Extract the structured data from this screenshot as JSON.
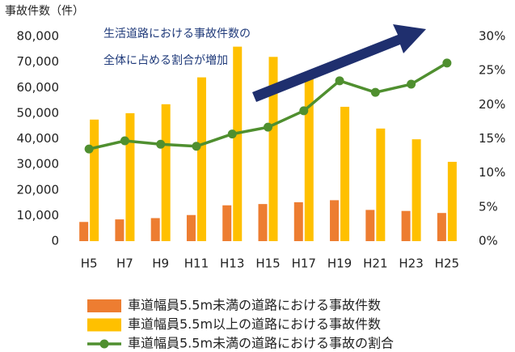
{
  "chart_data": {
    "type": "bar",
    "y_axis_label": "事故件数（件）",
    "annotation": [
      "生活道路における事故件数の",
      "全体に占める割合が増加"
    ],
    "categories": [
      "H5",
      "H7",
      "H9",
      "H11",
      "H13",
      "H15",
      "H17",
      "H19",
      "H21",
      "H23",
      "H25"
    ],
    "series": [
      {
        "name": "車道幅員5.5m未満の道路における事故件数",
        "type": "bar",
        "color": "#ed7d31",
        "values": [
          7500,
          8500,
          9000,
          10200,
          14000,
          14500,
          15200,
          16000,
          12200,
          11800,
          11000
        ]
      },
      {
        "name": "車道幅員5.5m以上の道路における事故件数",
        "type": "bar",
        "color": "#ffc000",
        "values": [
          47500,
          50000,
          53500,
          64000,
          76000,
          72000,
          65000,
          52500,
          44000,
          39800,
          31000
        ]
      },
      {
        "name": "車道幅員5.5m未満の道路における事故の割合",
        "type": "line",
        "axis": "y2",
        "color": "#4f8f2f",
        "values": [
          13.5,
          14.7,
          14.2,
          13.9,
          15.7,
          16.7,
          19.1,
          23.5,
          21.8,
          23.0,
          26.1
        ]
      }
    ],
    "ylim": [
      0,
      80000
    ],
    "yticks": [
      0,
      {
        "value": 10000,
        "label": "10,000"
      },
      {
        "value": 20000,
        "label": "20,000"
      },
      {
        "value": 30000,
        "label": "30,000"
      },
      {
        "value": 40000,
        "label": "40,000"
      },
      {
        "value": 50000,
        "label": "50,000"
      },
      {
        "value": 60000,
        "label": "60,000"
      },
      {
        "value": 70000,
        "label": "70,000"
      },
      {
        "value": 80000,
        "label": "80,000"
      }
    ],
    "y2lim": [
      0,
      30
    ],
    "y2ticks": [
      {
        "value": 0,
        "label": "0%"
      },
      {
        "value": 5,
        "label": "5%"
      },
      {
        "value": 10,
        "label": "10%"
      },
      {
        "value": 15,
        "label": "15%"
      },
      {
        "value": 20,
        "label": "20%"
      },
      {
        "value": 25,
        "label": "25%"
      },
      {
        "value": 30,
        "label": "30%"
      }
    ],
    "grid": false,
    "legend": "bottom"
  }
}
